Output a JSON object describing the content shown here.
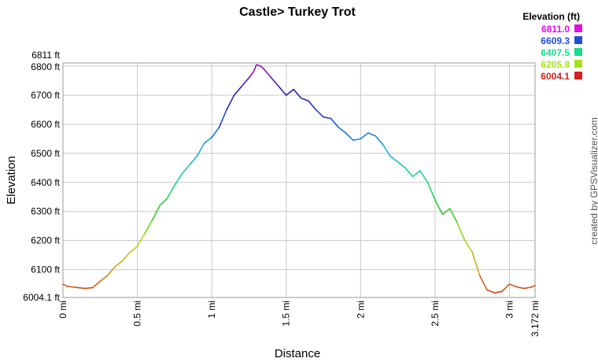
{
  "chart_data": {
    "type": "line",
    "title": "Castle> Turkey Trot",
    "xlabel": "Distance",
    "ylabel": "Elevation",
    "xlim": [
      0,
      3.172
    ],
    "ylim": [
      6004.1,
      6811
    ],
    "x_ticks": [
      {
        "value": 0,
        "label": "0 mi"
      },
      {
        "value": 0.5,
        "label": "0.5 mi"
      },
      {
        "value": 1,
        "label": "1 mi"
      },
      {
        "value": 1.5,
        "label": "1.5 mi"
      },
      {
        "value": 2,
        "label": "2 mi"
      },
      {
        "value": 2.5,
        "label": "2.5 mi"
      },
      {
        "value": 3,
        "label": "3 mi"
      },
      {
        "value": 3.172,
        "label": "3.172 mi"
      }
    ],
    "y_ticks": [
      {
        "value": 6004.1,
        "label": "6004.1 ft"
      },
      {
        "value": 6100,
        "label": "6100 ft"
      },
      {
        "value": 6200,
        "label": "6200 ft"
      },
      {
        "value": 6300,
        "label": "6300 ft"
      },
      {
        "value": 6400,
        "label": "6400 ft"
      },
      {
        "value": 6500,
        "label": "6500 ft"
      },
      {
        "value": 6600,
        "label": "6600 ft"
      },
      {
        "value": 6700,
        "label": "6700 ft"
      },
      {
        "value": 6800,
        "label": "6800 ft"
      },
      {
        "value": 6811,
        "label": "6811 ft"
      }
    ],
    "grid": true,
    "x": [
      0,
      0.03,
      0.07,
      0.1,
      0.15,
      0.2,
      0.25,
      0.3,
      0.35,
      0.4,
      0.45,
      0.5,
      0.55,
      0.6,
      0.65,
      0.7,
      0.75,
      0.8,
      0.85,
      0.9,
      0.95,
      1.0,
      1.05,
      1.1,
      1.15,
      1.2,
      1.25,
      1.28,
      1.3,
      1.33,
      1.35,
      1.4,
      1.45,
      1.5,
      1.55,
      1.6,
      1.65,
      1.7,
      1.75,
      1.8,
      1.85,
      1.9,
      1.95,
      2.0,
      2.05,
      2.1,
      2.15,
      2.2,
      2.25,
      2.3,
      2.35,
      2.4,
      2.45,
      2.5,
      2.55,
      2.6,
      2.65,
      2.7,
      2.75,
      2.8,
      2.85,
      2.9,
      2.95,
      3.0,
      3.05,
      3.1,
      3.15,
      3.172
    ],
    "y": [
      6050,
      6042,
      6040,
      6038,
      6035,
      6038,
      6060,
      6080,
      6110,
      6130,
      6160,
      6180,
      6225,
      6270,
      6320,
      6345,
      6390,
      6430,
      6460,
      6490,
      6535,
      6555,
      6590,
      6650,
      6700,
      6730,
      6760,
      6780,
      6805,
      6800,
      6790,
      6760,
      6730,
      6700,
      6720,
      6690,
      6680,
      6650,
      6625,
      6620,
      6590,
      6570,
      6545,
      6550,
      6570,
      6560,
      6530,
      6490,
      6470,
      6450,
      6420,
      6440,
      6400,
      6340,
      6290,
      6310,
      6260,
      6200,
      6160,
      6080,
      6030,
      6020,
      6025,
      6050,
      6040,
      6035,
      6040,
      6045
    ],
    "legend": {
      "title": "Elevation (ft)",
      "placement": "top-right",
      "entries": [
        {
          "label": "6811.0",
          "color": "#e010e0"
        },
        {
          "label": "6609.3",
          "color": "#1f4fd8"
        },
        {
          "label": "6407.5",
          "color": "#1adb8a"
        },
        {
          "label": "6205.8",
          "color": "#a8e01a"
        },
        {
          "label": "6004.1",
          "color": "#d42020"
        }
      ]
    },
    "color_stops": [
      {
        "value": 6004.1,
        "color": "#c82a10"
      },
      {
        "value": 6105,
        "color": "#d8a020"
      },
      {
        "value": 6205.8,
        "color": "#a8e01a"
      },
      {
        "value": 6306,
        "color": "#30c830"
      },
      {
        "value": 6407.5,
        "color": "#1adb8a"
      },
      {
        "value": 6508,
        "color": "#20b0d0"
      },
      {
        "value": 6609.3,
        "color": "#1f4fd8"
      },
      {
        "value": 6710,
        "color": "#2020a0"
      },
      {
        "value": 6811,
        "color": "#b010c8"
      }
    ]
  },
  "credit": "created by GPSVisualizer.com"
}
